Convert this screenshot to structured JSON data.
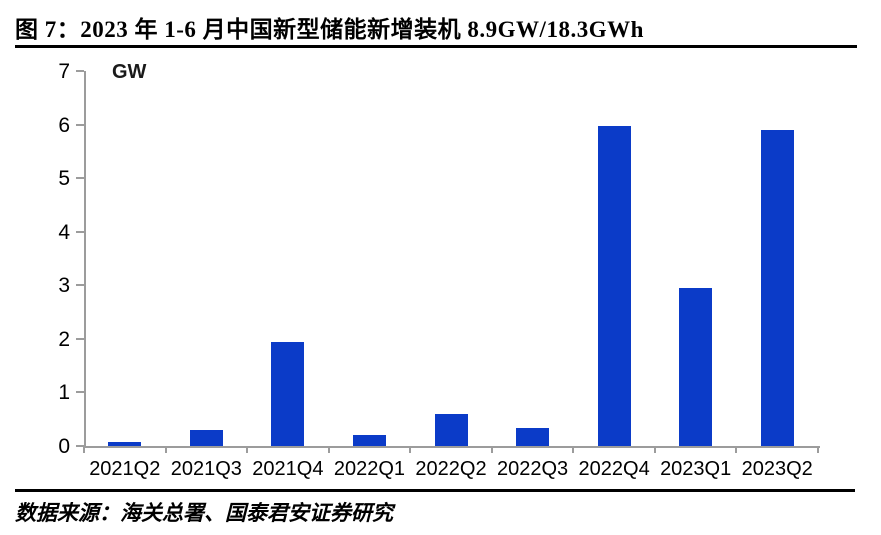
{
  "figure": {
    "title": "图 7：2023 年 1-6 月中国新型储能新增装机 8.9GW/18.3GWh",
    "source": "数据来源：海关总署、国泰君安证券研究"
  },
  "chart_data": {
    "type": "bar",
    "title": "2023 年 1-6 月中国新型储能新增装机 8.9GW/18.3GWh",
    "unit_label": "GW",
    "categories": [
      "2021Q2",
      "2021Q3",
      "2021Q4",
      "2022Q1",
      "2022Q2",
      "2022Q3",
      "2022Q4",
      "2023Q1",
      "2023Q2"
    ],
    "values": [
      0.08,
      0.3,
      1.95,
      0.2,
      0.6,
      0.33,
      5.97,
      2.95,
      5.9
    ],
    "xlabel": "",
    "ylabel": "GW",
    "ylim": [
      0,
      7
    ],
    "yticks": [
      0,
      1,
      2,
      3,
      4,
      5,
      6,
      7
    ],
    "grid": false,
    "legend_position": "none",
    "colors": {
      "bar": "#0b3bc8",
      "axis": "#9c9c9c",
      "text": "#000000",
      "rule": "#000000"
    }
  }
}
